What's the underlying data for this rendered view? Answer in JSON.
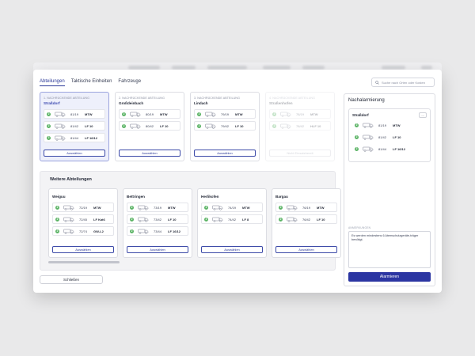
{
  "tabs": [
    "Abteilungen",
    "Taktische Einheiten",
    "Fahrzeuge"
  ],
  "search": {
    "placeholder": "Suche nach Orten oder Kosten"
  },
  "top_cards": [
    {
      "title": "1. NACHRÜCKENDE ABTEILUNG",
      "name": "Straßdorf",
      "button": "Auswählen",
      "rows": [
        {
          "num": "2",
          "code": "81/19",
          "type": "MTW"
        },
        {
          "num": "2",
          "code": "81/42",
          "type": "LF 10"
        },
        {
          "num": "2",
          "code": "81/44",
          "type": "LF 16/12"
        }
      ]
    },
    {
      "title": "2. NACHRÜCKENDE ABTEILUNG",
      "name": "Großdeinbach",
      "button": "Auswählen",
      "rows": [
        {
          "num": "2",
          "code": "80/19",
          "type": "MTW"
        },
        {
          "num": "2",
          "code": "80/42",
          "type": "LF 10"
        }
      ]
    },
    {
      "title": "3. NACHRÜCKENDE ABTEILUNG",
      "name": "Lindach",
      "button": "Auswählen",
      "rows": [
        {
          "num": "2",
          "code": "79/19",
          "type": "MTW"
        },
        {
          "num": "2",
          "code": "79/42",
          "type": "LF 10"
        }
      ]
    },
    {
      "title": "4. NACHRÜCKENDE ABTEILUNG",
      "name": "Straßenhofen",
      "button": "Nicht Einsatzbereit",
      "rows": [
        {
          "num": "2",
          "code": "78/19",
          "type": "MTW"
        },
        {
          "num": "2",
          "code": "78/42",
          "type": "HLF 10"
        }
      ]
    }
  ],
  "panel": {
    "title": "Weitere Abteilungen",
    "cards": [
      {
        "name": "Weiguu",
        "button": "Auswählen",
        "rows": [
          {
            "num": "2",
            "code": "72/19",
            "type": "MTW"
          },
          {
            "num": "2",
            "code": "72/45",
            "type": "LF Kat6"
          },
          {
            "num": "2",
            "code": "72/74",
            "type": "GW-L2"
          }
        ]
      },
      {
        "name": "Bettringen",
        "button": "Auswählen",
        "rows": [
          {
            "num": "2",
            "code": "73/19",
            "type": "MTW"
          },
          {
            "num": "2",
            "code": "73/42",
            "type": "LF 10"
          },
          {
            "num": "2",
            "code": "73/44",
            "type": "LF 16/12"
          }
        ]
      },
      {
        "name": "Herlikofen",
        "button": "Auswählen",
        "rows": [
          {
            "num": "2",
            "code": "74/19",
            "type": "MTW"
          },
          {
            "num": "2",
            "code": "74/42",
            "type": "LF 8"
          }
        ]
      },
      {
        "name": "Bargau",
        "button": "Auswählen",
        "rows": [
          {
            "num": "2",
            "code": "76/19",
            "type": "MTW"
          },
          {
            "num": "2",
            "code": "76/42",
            "type": "LF 10"
          }
        ]
      }
    ]
  },
  "close_button": "Schließen",
  "side": {
    "title": "Nachalarmierung",
    "card": {
      "name": "Straßdorf",
      "more": "...",
      "rows": [
        {
          "num": "2",
          "code": "81/19",
          "type": "MTW"
        },
        {
          "num": "2",
          "code": "81/42",
          "type": "LF 10"
        },
        {
          "num": "2",
          "code": "81/44",
          "type": "LF 16/12"
        }
      ]
    },
    "note_label": "ANMERKUNGEN",
    "note_text": "Es werden mindestens 6 Atemschutzgeräte-träger benötigt.",
    "alarm_button": "Alarmieren"
  },
  "colors": {
    "accent": "#2b35a2",
    "badge": "#5cb466",
    "selected_bg": "#eef0fb"
  },
  "icons": {
    "vehicle": "fire-truck-icon",
    "search": "search-icon"
  }
}
